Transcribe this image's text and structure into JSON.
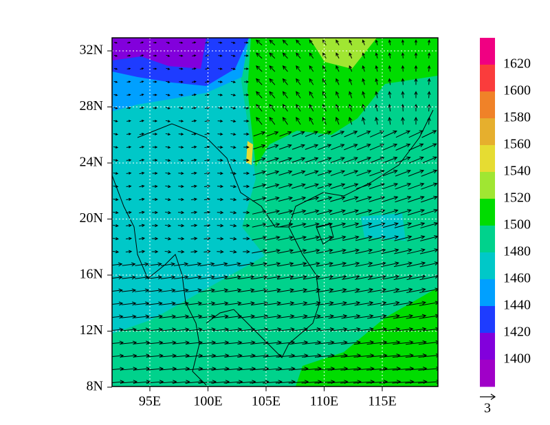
{
  "map": {
    "lat_labels": [
      "32N",
      "28N",
      "24N",
      "20N",
      "16N",
      "12N",
      "8N"
    ],
    "lon_labels": [
      "95E",
      "100E",
      "105E",
      "110E",
      "115E"
    ],
    "colorbar": {
      "labels": [
        "1620",
        "1600",
        "1580",
        "1560",
        "1540",
        "1520",
        "1500",
        "1480",
        "1460",
        "1440",
        "1420",
        "1400"
      ],
      "colors": [
        "#f00082",
        "#fa3c3c",
        "#f08228",
        "#e6af2d",
        "#e6dc32",
        "#a0e632",
        "#00dc00",
        "#00d28c",
        "#00c8c8",
        "#00a0ff",
        "#1e3cff",
        "#8200dc",
        "#a000c8"
      ]
    },
    "reference_vector": {
      "label": "3"
    }
  }
}
